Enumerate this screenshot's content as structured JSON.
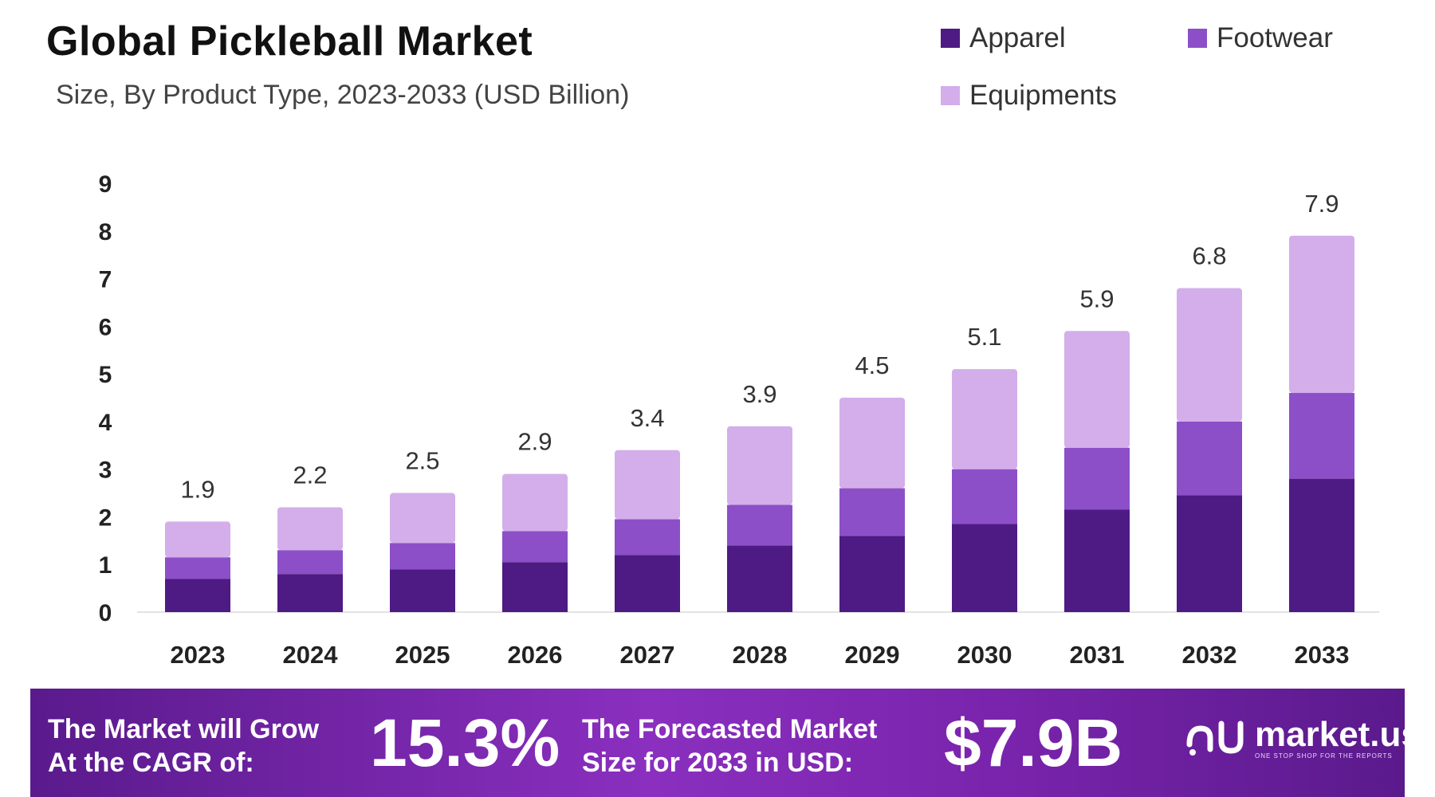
{
  "colors": {
    "apparel": "#4e1a83",
    "footwear": "#8c4fc8",
    "equipments": "#d3aeea",
    "axis_text": "#222222",
    "total_label": "#333333"
  },
  "chart_data": {
    "type": "bar",
    "stacked": true,
    "title": "Global Pickleball Market",
    "subtitle": "Size, By Product Type, 2023-2033 (USD Billion)",
    "categories": [
      "2023",
      "2024",
      "2025",
      "2026",
      "2027",
      "2028",
      "2029",
      "2030",
      "2031",
      "2032",
      "2033"
    ],
    "series": [
      {
        "name": "Apparel",
        "values": [
          0.7,
          0.8,
          0.9,
          1.05,
          1.2,
          1.4,
          1.6,
          1.85,
          2.15,
          2.45,
          2.8
        ]
      },
      {
        "name": "Footwear",
        "values": [
          0.45,
          0.5,
          0.55,
          0.65,
          0.75,
          0.85,
          1.0,
          1.15,
          1.3,
          1.55,
          1.8
        ]
      },
      {
        "name": "Equipments",
        "values": [
          0.75,
          0.9,
          1.05,
          1.2,
          1.45,
          1.65,
          1.9,
          2.1,
          2.45,
          2.8,
          3.3
        ]
      }
    ],
    "totals": [
      "1.9",
      "2.2",
      "2.5",
      "2.9",
      "3.4",
      "3.9",
      "4.5",
      "5.1",
      "5.9",
      "6.8",
      "7.9"
    ],
    "yticks": [
      "0",
      "1",
      "2",
      "3",
      "4",
      "5",
      "6",
      "7",
      "8",
      "9"
    ],
    "ylim": [
      0,
      9
    ],
    "xlabel": "",
    "ylabel": "",
    "legend_position": "top-right",
    "grid": false
  },
  "footer": {
    "cagr_text": "The Market will Grow\nAt the CAGR of:",
    "cagr_value": "15.3%",
    "forecast_text": "The Forecasted Market\nSize for 2033 in USD:",
    "forecast_value": "$7.9B",
    "brand_name": "market.us",
    "brand_tagline": "ONE STOP SHOP FOR THE REPORTS"
  }
}
